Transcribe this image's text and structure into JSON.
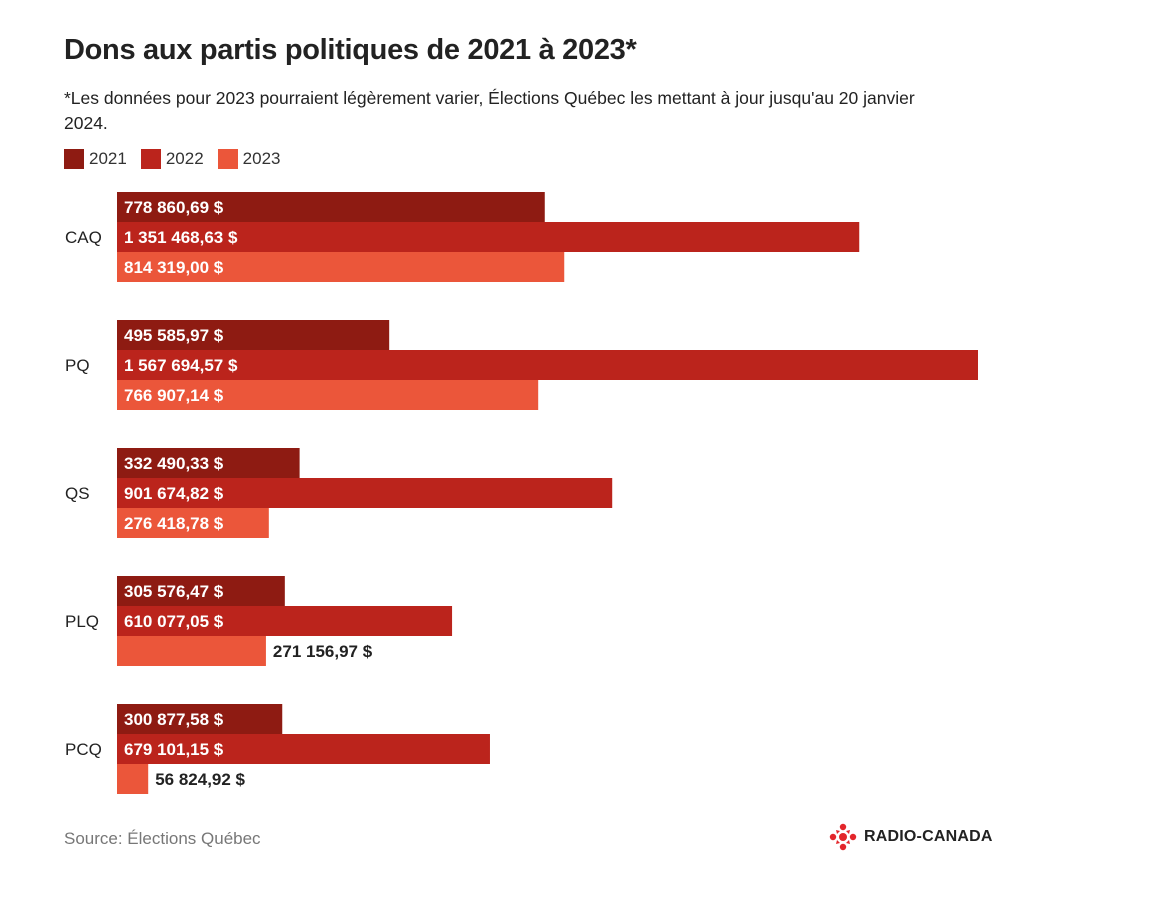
{
  "title": "Dons aux partis politiques de 2021 à 2023*",
  "subtitle": "*Les données pour 2023 pourraient légèrement varier, Élections Québec les mettant à jour jusqu'au 20 janvier 2024.",
  "source": "Source: Élections Québec",
  "brand": {
    "name": "RADIO-CANADA",
    "logo_icon": "radio-canada-gem-icon",
    "color": "#e3262b"
  },
  "colors": {
    "2021": "#8e1b12",
    "2022": "#bb241c",
    "2023": "#eb563a"
  },
  "chart_data": {
    "type": "bar",
    "orientation": "horizontal",
    "title": "Dons aux partis politiques de 2021 à 2023*",
    "categories": [
      "CAQ",
      "PQ",
      "QS",
      "PLQ",
      "PCQ"
    ],
    "series": [
      {
        "name": "2021",
        "color": "#8e1b12",
        "values": [
          778860.69,
          495585.97,
          332490.33,
          305576.47,
          300877.58
        ],
        "labels": [
          "778 860,69 $",
          "495 585,97 $",
          "332 490,33 $",
          "305 576,47 $",
          "300 877,58 $"
        ]
      },
      {
        "name": "2022",
        "color": "#bb241c",
        "values": [
          1351468.63,
          1567694.57,
          901674.82,
          610077.05,
          679101.15
        ],
        "labels": [
          "1 351 468,63 $",
          "1 567 694,57 $",
          "901 674,82 $",
          "610 077,05 $",
          "679 101,15 $"
        ]
      },
      {
        "name": "2023",
        "color": "#eb563a",
        "values": [
          814319.0,
          766907.14,
          276418.78,
          271156.97,
          56824.92
        ],
        "labels": [
          "814 319,00 $",
          "766 907,14 $",
          "276 418,78 $",
          "271 156,97 $",
          "56 824,92 $"
        ]
      }
    ],
    "grid": false,
    "legend_position": "top-left",
    "xlabel": "",
    "ylabel": ""
  }
}
